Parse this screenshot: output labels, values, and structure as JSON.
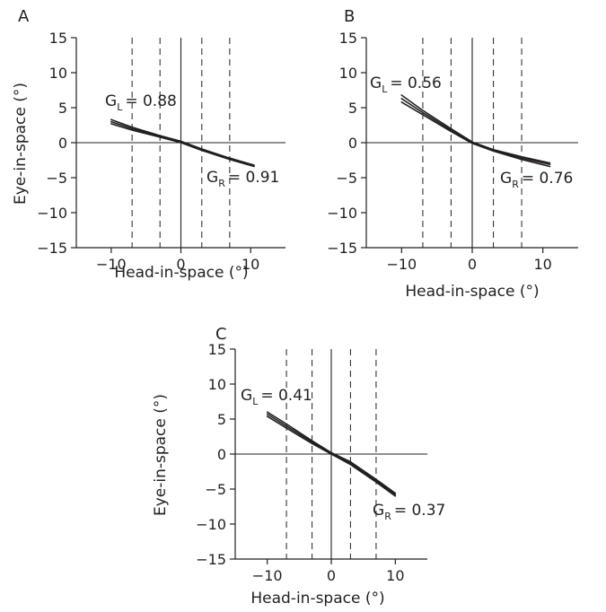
{
  "chart_data": [
    {
      "panel": "A",
      "type": "line",
      "xlabel": "Head-in-space (°)",
      "ylabel": "Eye-in-space (°)",
      "xlim": [
        -15,
        15
      ],
      "ylim": [
        -15,
        15
      ],
      "xticks": [
        -10,
        0,
        10
      ],
      "yticks": [
        -15,
        -10,
        -5,
        0,
        5,
        10,
        15
      ],
      "dashed_lines_x": [
        -7,
        -3,
        3,
        7
      ],
      "gains": [
        {
          "prefix": "G",
          "sub": "L",
          "value": "= 0.88"
        },
        {
          "prefix": "G",
          "sub": "R",
          "value": "= 0.91"
        }
      ],
      "series": [
        {
          "x": [
            -10,
            -7,
            -3,
            0,
            3,
            7,
            10.5
          ],
          "y": [
            3.3,
            2.2,
            1.0,
            0.2,
            -0.9,
            -2.2,
            -3.2
          ]
        },
        {
          "x": [
            -10,
            -7,
            -3,
            0,
            3,
            7,
            10.5
          ],
          "y": [
            3.0,
            2.0,
            0.9,
            0.1,
            -1.0,
            -2.3,
            -3.3
          ]
        },
        {
          "x": [
            -10,
            -7,
            -3,
            0,
            3,
            7,
            10.5
          ],
          "y": [
            2.7,
            1.8,
            0.8,
            0.0,
            -1.1,
            -2.4,
            -3.4
          ]
        }
      ]
    },
    {
      "panel": "B",
      "type": "line",
      "xlabel": "Head-in-space (°)",
      "ylabel": "",
      "xlim": [
        -15,
        15
      ],
      "ylim": [
        -15,
        15
      ],
      "xticks": [
        -10,
        0,
        10
      ],
      "yticks": [
        -15,
        -10,
        -5,
        0,
        5,
        10,
        15
      ],
      "dashed_lines_x": [
        -7,
        -3,
        3,
        7
      ],
      "gains": [
        {
          "prefix": "G",
          "sub": "L",
          "value": "= 0.56"
        },
        {
          "prefix": "G",
          "sub": "R",
          "value": "= 0.76"
        }
      ],
      "series": [
        {
          "x": [
            -10,
            -7,
            -3,
            0,
            3,
            7,
            11
          ],
          "y": [
            6.8,
            4.6,
            2.0,
            0.1,
            -1.0,
            -2.0,
            -2.9
          ]
        },
        {
          "x": [
            -10,
            -7,
            -3,
            0,
            3,
            7,
            11
          ],
          "y": [
            6.3,
            4.3,
            1.8,
            0.0,
            -1.1,
            -2.2,
            -3.1
          ]
        },
        {
          "x": [
            -10,
            -7,
            -3,
            0,
            3,
            7,
            11
          ],
          "y": [
            5.8,
            4.0,
            1.6,
            -0.1,
            -1.2,
            -2.4,
            -3.4
          ]
        }
      ]
    },
    {
      "panel": "C",
      "type": "line",
      "xlabel": "Head-in-space (°)",
      "ylabel": "Eye-in-space (°)",
      "xlim": [
        -15,
        15
      ],
      "ylim": [
        -15,
        15
      ],
      "xticks": [
        -10,
        0,
        10
      ],
      "yticks": [
        -15,
        -10,
        -5,
        0,
        5,
        10,
        15
      ],
      "dashed_lines_x": [
        -7,
        -3,
        3,
        7
      ],
      "gains": [
        {
          "prefix": "G",
          "sub": "L",
          "value": "= 0.41"
        },
        {
          "prefix": "G",
          "sub": "R",
          "value": "= 0.37"
        }
      ],
      "series": [
        {
          "x": [
            -10,
            -7,
            -3,
            0,
            3,
            7,
            10
          ],
          "y": [
            6.0,
            4.3,
            1.9,
            0.2,
            -1.1,
            -3.6,
            -5.6
          ]
        },
        {
          "x": [
            -10,
            -7,
            -3,
            0,
            3,
            7,
            10
          ],
          "y": [
            5.7,
            4.0,
            1.7,
            0.1,
            -1.3,
            -3.8,
            -5.8
          ]
        },
        {
          "x": [
            -10,
            -7,
            -3,
            0,
            3,
            7,
            10
          ],
          "y": [
            5.4,
            3.7,
            1.5,
            0.0,
            -1.5,
            -4.0,
            -6.0
          ]
        }
      ]
    }
  ],
  "colors": {
    "ink": "#231f20",
    "background": "#ffffff"
  }
}
